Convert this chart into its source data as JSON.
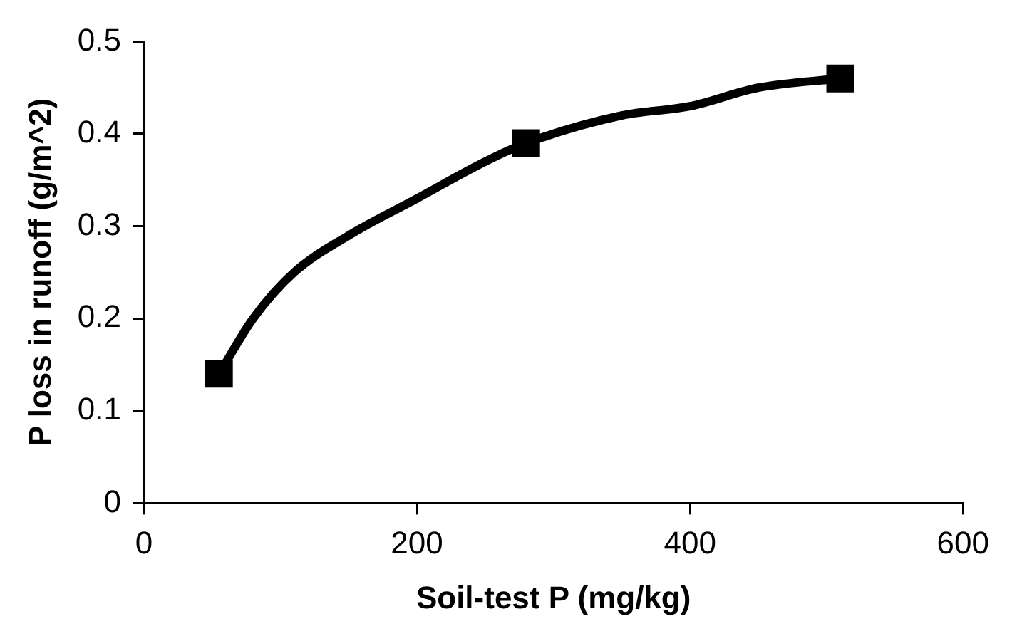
{
  "chart_data": {
    "type": "scatter",
    "xlabel": "Soil-test P (mg/kg)",
    "ylabel": "P loss in runoff (g/m^2)",
    "xlim": [
      0,
      600
    ],
    "xticks": [
      0,
      200,
      400,
      600
    ],
    "ylim": [
      0,
      0.5
    ],
    "yticks": [
      0,
      0.1,
      0.2,
      0.3,
      0.4,
      0.5
    ],
    "grid": false,
    "legend": false,
    "series": [
      {
        "type": "line",
        "color": "#000000",
        "marker": "none",
        "line_style": "solid",
        "x": [
          55,
          80,
          110,
          150,
          200,
          250,
          280,
          350,
          400,
          450,
          510
        ],
        "values": [
          0.14,
          0.2,
          0.25,
          0.29,
          0.33,
          0.37,
          0.39,
          0.42,
          0.43,
          0.45,
          0.46
        ]
      },
      {
        "type": "scatter",
        "color": "#000000",
        "marker": "square",
        "x": [
          55,
          280,
          510
        ],
        "values": [
          0.14,
          0.39,
          0.46
        ]
      }
    ]
  }
}
